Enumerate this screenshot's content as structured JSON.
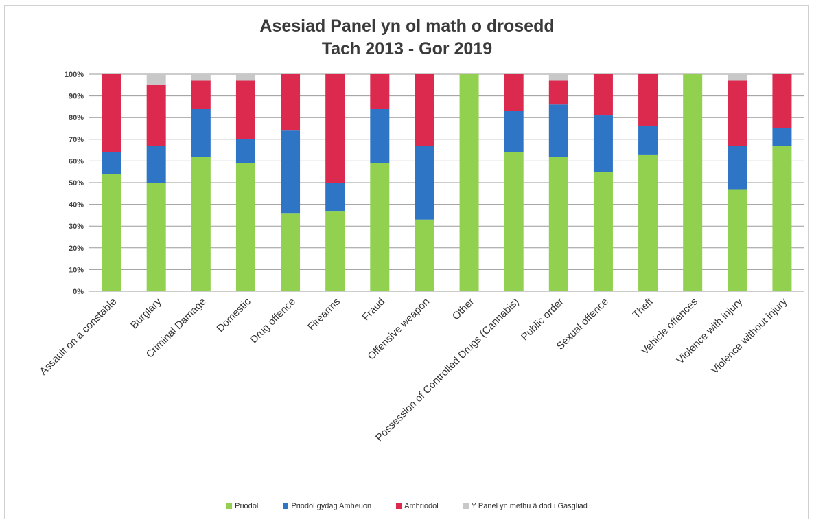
{
  "chart_data": {
    "type": "bar",
    "stacked": true,
    "title_line1": "Asesiad Panel yn ol math o drosedd",
    "title_line2": "Tach 2013 - Gor 2019",
    "categories": [
      "Assault on a constable",
      "Burglary",
      "Criminal Damage",
      "Domestic",
      "Drug offence",
      "Firearms",
      "Fraud",
      "Offensive weapon",
      "Other",
      "Possession of Controlled Drugs (Cannabis)",
      "Public order",
      "Sexual offence",
      "Theft",
      "Vehicle offences",
      "Violence with injury",
      "Violence without injury"
    ],
    "y_ticks": [
      "0%",
      "10%",
      "20%",
      "30%",
      "40%",
      "50%",
      "60%",
      "70%",
      "80%",
      "90%",
      "100%"
    ],
    "ylim": [
      0,
      100
    ],
    "grid": "horizontal",
    "legend_position": "bottom",
    "series": [
      {
        "name": "Priodol",
        "color": "#92d050",
        "values": [
          54,
          50,
          62,
          59,
          36,
          37,
          59,
          33,
          100,
          64,
          62,
          55,
          63,
          100,
          47,
          67
        ]
      },
      {
        "name": "Priodol gydag Amheuon",
        "color": "#2e75c6",
        "values": [
          10,
          17,
          22,
          11,
          38,
          13,
          25,
          34,
          0,
          19,
          24,
          26,
          13,
          0,
          20,
          8
        ]
      },
      {
        "name": "Amhriodol",
        "color": "#dc2a4f",
        "values": [
          36,
          28,
          13,
          27,
          26,
          50,
          16,
          33,
          0,
          17,
          11,
          19,
          24,
          0,
          30,
          25
        ]
      },
      {
        "name": "Y Panel yn methu â dod i Gasgliad",
        "color": "#c8c8c8",
        "values": [
          0,
          5,
          3,
          3,
          0,
          0,
          0,
          0,
          0,
          0,
          3,
          0,
          0,
          0,
          3,
          0
        ]
      }
    ]
  }
}
